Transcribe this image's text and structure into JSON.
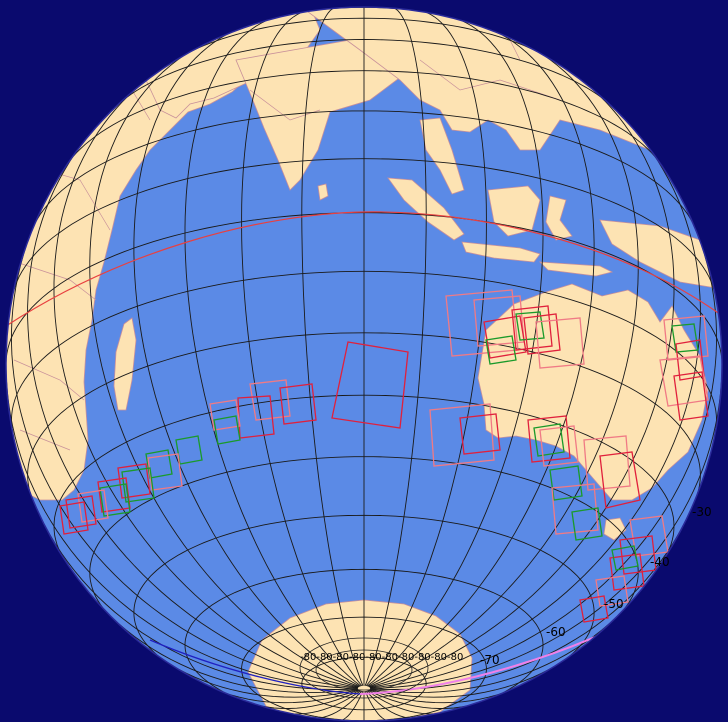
{
  "map": {
    "background": "#0a0a6e",
    "ocean": "#5b8ae6",
    "land": "#fde3b3",
    "graticule": "#1a1a1a",
    "border": "#c8909a",
    "footprint_red": "#e0203c",
    "footprint_pink": "#f07a85",
    "footprint_green": "#1a9a2a",
    "orbit_red": "#e84040",
    "orbit_blue": "#2020c0",
    "orbit_magenta": "#f080e8"
  },
  "lat_labels": [
    "-30",
    "-40",
    "-50",
    "-60",
    "-70"
  ],
  "pole_labels": "-80-80-80-80-80-80-80-80-80-80"
}
